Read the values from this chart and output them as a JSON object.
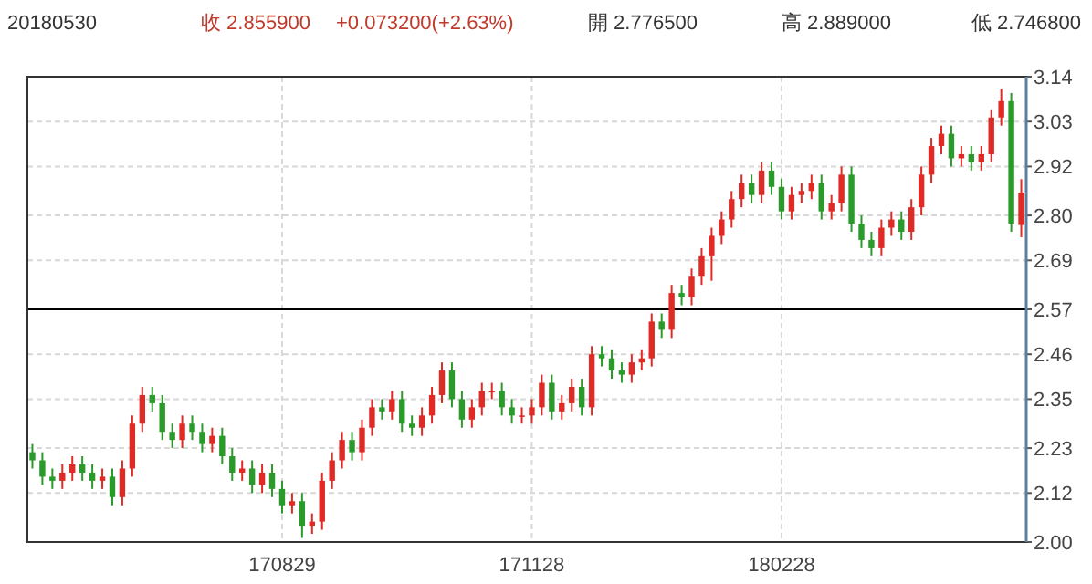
{
  "chart_data": {
    "type": "candlestick",
    "title": "20180530",
    "annotations": [
      "收 2.855900",
      "+0.073200(+2.63%)",
      "開 2.776500",
      "高 2.889000",
      "低 2.746800"
    ],
    "categories": [
      null,
      null,
      null,
      null,
      null,
      null,
      null,
      null,
      null,
      null,
      null,
      null,
      null,
      null,
      null,
      null,
      null,
      null,
      null,
      null,
      null,
      null,
      null,
      null,
      null,
      "170829",
      null,
      null,
      null,
      null,
      null,
      null,
      null,
      null,
      null,
      null,
      null,
      null,
      null,
      null,
      null,
      null,
      null,
      null,
      null,
      null,
      null,
      null,
      null,
      null,
      "171128",
      null,
      null,
      null,
      null,
      null,
      null,
      null,
      null,
      null,
      null,
      null,
      null,
      null,
      null,
      null,
      null,
      null,
      null,
      null,
      null,
      null,
      null,
      null,
      null,
      "180228",
      null,
      null,
      null,
      null,
      null,
      null,
      null,
      null,
      null,
      null,
      null,
      null,
      null,
      null,
      null,
      null,
      null,
      null,
      null,
      null,
      null,
      null,
      null,
      null
    ],
    "ohlc": [
      [
        2.22,
        2.24,
        2.18,
        2.2
      ],
      [
        2.2,
        2.22,
        2.14,
        2.16
      ],
      [
        2.16,
        2.18,
        2.13,
        2.15
      ],
      [
        2.15,
        2.19,
        2.13,
        2.17
      ],
      [
        2.17,
        2.21,
        2.15,
        2.19
      ],
      [
        2.19,
        2.21,
        2.15,
        2.17
      ],
      [
        2.17,
        2.19,
        2.13,
        2.15
      ],
      [
        2.15,
        2.18,
        2.13,
        2.16
      ],
      [
        2.16,
        2.18,
        2.09,
        2.11
      ],
      [
        2.11,
        2.2,
        2.09,
        2.18
      ],
      [
        2.18,
        2.31,
        2.16,
        2.29
      ],
      [
        2.29,
        2.38,
        2.27,
        2.36
      ],
      [
        2.36,
        2.38,
        2.32,
        2.34
      ],
      [
        2.34,
        2.36,
        2.25,
        2.27
      ],
      [
        2.27,
        2.29,
        2.23,
        2.25
      ],
      [
        2.25,
        2.31,
        2.23,
        2.29
      ],
      [
        2.29,
        2.31,
        2.25,
        2.27
      ],
      [
        2.27,
        2.29,
        2.22,
        2.24
      ],
      [
        2.24,
        2.28,
        2.22,
        2.26
      ],
      [
        2.26,
        2.28,
        2.19,
        2.21
      ],
      [
        2.21,
        2.23,
        2.15,
        2.17
      ],
      [
        2.17,
        2.2,
        2.15,
        2.18
      ],
      [
        2.18,
        2.2,
        2.12,
        2.14
      ],
      [
        2.14,
        2.19,
        2.12,
        2.17
      ],
      [
        2.17,
        2.19,
        2.11,
        2.13
      ],
      [
        2.13,
        2.15,
        2.07,
        2.09
      ],
      [
        2.09,
        2.12,
        2.07,
        2.1
      ],
      [
        2.1,
        2.12,
        2.01,
        2.04
      ],
      [
        2.04,
        2.07,
        2.02,
        2.05
      ],
      [
        2.05,
        2.17,
        2.03,
        2.15
      ],
      [
        2.15,
        2.22,
        2.13,
        2.2
      ],
      [
        2.2,
        2.27,
        2.18,
        2.25
      ],
      [
        2.25,
        2.27,
        2.2,
        2.22
      ],
      [
        2.22,
        2.3,
        2.2,
        2.28
      ],
      [
        2.28,
        2.35,
        2.26,
        2.33
      ],
      [
        2.33,
        2.35,
        2.3,
        2.32
      ],
      [
        2.32,
        2.37,
        2.3,
        2.35
      ],
      [
        2.35,
        2.37,
        2.27,
        2.29
      ],
      [
        2.29,
        2.31,
        2.26,
        2.28
      ],
      [
        2.28,
        2.33,
        2.26,
        2.31
      ],
      [
        2.31,
        2.38,
        2.29,
        2.36
      ],
      [
        2.36,
        2.44,
        2.34,
        2.42
      ],
      [
        2.42,
        2.44,
        2.33,
        2.35
      ],
      [
        2.35,
        2.37,
        2.28,
        2.3
      ],
      [
        2.3,
        2.35,
        2.28,
        2.33
      ],
      [
        2.33,
        2.39,
        2.31,
        2.37
      ],
      [
        2.37,
        2.39,
        2.35,
        2.37
      ],
      [
        2.37,
        2.39,
        2.31,
        2.33
      ],
      [
        2.33,
        2.35,
        2.29,
        2.31
      ],
      [
        2.31,
        2.33,
        2.29,
        2.31
      ],
      [
        2.31,
        2.35,
        2.29,
        2.33
      ],
      [
        2.33,
        2.41,
        2.31,
        2.39
      ],
      [
        2.39,
        2.41,
        2.3,
        2.32
      ],
      [
        2.32,
        2.36,
        2.3,
        2.34
      ],
      [
        2.34,
        2.4,
        2.32,
        2.38
      ],
      [
        2.38,
        2.4,
        2.31,
        2.33
      ],
      [
        2.33,
        2.48,
        2.31,
        2.46
      ],
      [
        2.46,
        2.48,
        2.43,
        2.45
      ],
      [
        2.45,
        2.47,
        2.4,
        2.42
      ],
      [
        2.42,
        2.44,
        2.39,
        2.41
      ],
      [
        2.41,
        2.46,
        2.39,
        2.44
      ],
      [
        2.44,
        2.47,
        2.42,
        2.45
      ],
      [
        2.45,
        2.56,
        2.43,
        2.54
      ],
      [
        2.54,
        2.56,
        2.5,
        2.52
      ],
      [
        2.52,
        2.63,
        2.5,
        2.61
      ],
      [
        2.61,
        2.63,
        2.58,
        2.6
      ],
      [
        2.6,
        2.67,
        2.58,
        2.65
      ],
      [
        2.65,
        2.72,
        2.63,
        2.7
      ],
      [
        2.7,
        2.77,
        2.64,
        2.75
      ],
      [
        2.75,
        2.81,
        2.73,
        2.79
      ],
      [
        2.79,
        2.86,
        2.77,
        2.84
      ],
      [
        2.84,
        2.9,
        2.82,
        2.88
      ],
      [
        2.88,
        2.9,
        2.83,
        2.85
      ],
      [
        2.85,
        2.93,
        2.83,
        2.91
      ],
      [
        2.91,
        2.93,
        2.85,
        2.87
      ],
      [
        2.87,
        2.89,
        2.79,
        2.81
      ],
      [
        2.81,
        2.87,
        2.79,
        2.85
      ],
      [
        2.85,
        2.88,
        2.83,
        2.86
      ],
      [
        2.86,
        2.9,
        2.84,
        2.88
      ],
      [
        2.88,
        2.9,
        2.79,
        2.81
      ],
      [
        2.81,
        2.85,
        2.79,
        2.83
      ],
      [
        2.83,
        2.92,
        2.81,
        2.9
      ],
      [
        2.9,
        2.92,
        2.76,
        2.78
      ],
      [
        2.78,
        2.8,
        2.72,
        2.74
      ],
      [
        2.74,
        2.76,
        2.7,
        2.72
      ],
      [
        2.72,
        2.79,
        2.7,
        2.77
      ],
      [
        2.77,
        2.81,
        2.75,
        2.79
      ],
      [
        2.79,
        2.81,
        2.74,
        2.76
      ],
      [
        2.76,
        2.84,
        2.74,
        2.82
      ],
      [
        2.82,
        2.92,
        2.8,
        2.9
      ],
      [
        2.9,
        2.99,
        2.88,
        2.97
      ],
      [
        2.97,
        3.02,
        2.95,
        3.0
      ],
      [
        3.0,
        3.02,
        2.92,
        2.94
      ],
      [
        2.94,
        2.97,
        2.92,
        2.95
      ],
      [
        2.95,
        2.97,
        2.91,
        2.93
      ],
      [
        2.93,
        2.97,
        2.91,
        2.95
      ],
      [
        2.95,
        3.06,
        2.93,
        3.04
      ],
      [
        3.04,
        3.11,
        3.02,
        3.08
      ],
      [
        3.08,
        3.1,
        2.76,
        2.78
      ],
      [
        2.7765,
        2.889,
        2.7468,
        2.8559
      ]
    ],
    "ylim": [
      2.0,
      3.14
    ],
    "yticks": [
      {
        "value": 2.0,
        "label": "2.00"
      },
      2.12,
      2.23,
      2.35,
      2.46,
      2.57,
      2.69,
      {
        "value": 2.8,
        "label": "2.80"
      },
      2.92,
      3.03,
      3.14
    ],
    "ref_lines": [
      {
        "axis": "y",
        "value": 2.57,
        "color": "#000000"
      }
    ],
    "grid": true
  }
}
